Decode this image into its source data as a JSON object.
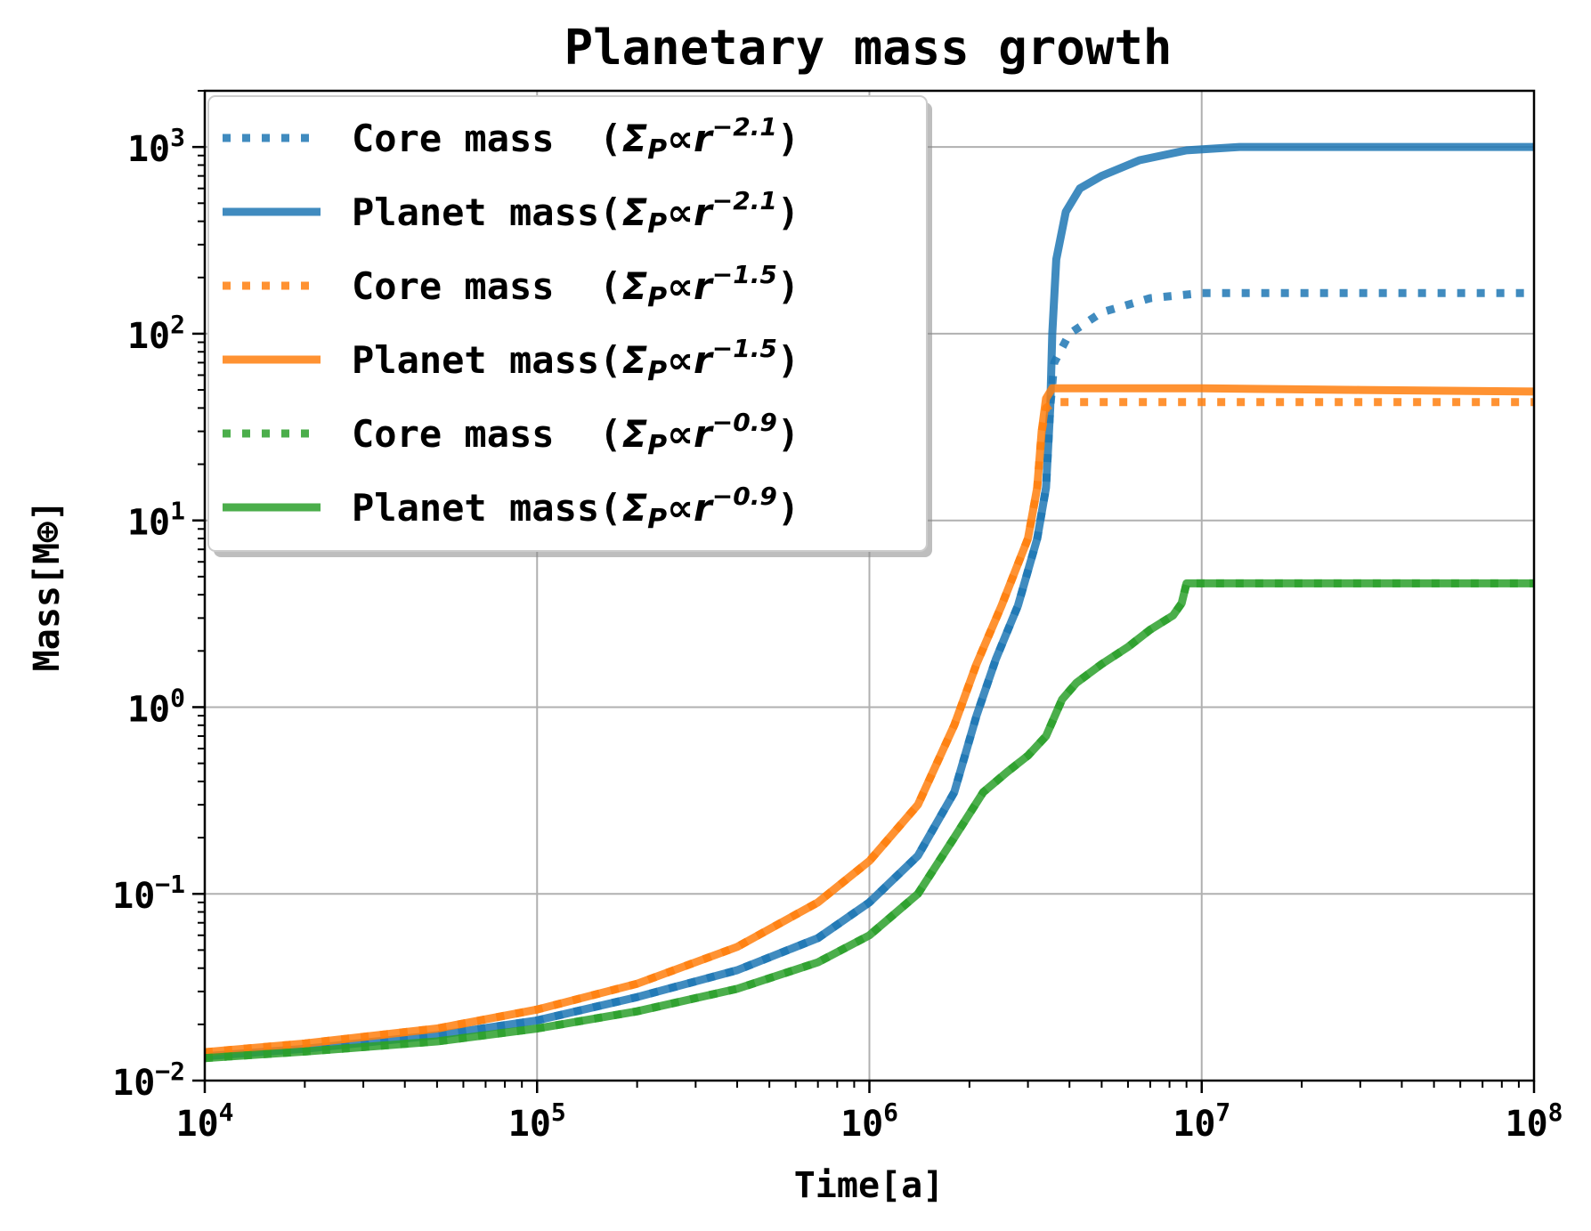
{
  "chart_data": {
    "type": "line",
    "title": "Planetary mass growth",
    "xlabel": "Time[a]",
    "ylabel": "Mass[M⊕]",
    "x_scale": "log",
    "y_scale": "log",
    "xlim": [
      10000,
      100000000
    ],
    "ylim": [
      0.01,
      2000
    ],
    "grid": true,
    "legend_position": "top-left",
    "x_ticks": [
      {
        "value": 10000,
        "base": "10",
        "exp": "4"
      },
      {
        "value": 100000,
        "base": "10",
        "exp": "5"
      },
      {
        "value": 1000000,
        "base": "10",
        "exp": "6"
      },
      {
        "value": 10000000,
        "base": "10",
        "exp": "7"
      },
      {
        "value": 100000000,
        "base": "10",
        "exp": "8"
      }
    ],
    "y_ticks": [
      {
        "value": 0.01,
        "base": "10",
        "exp": "−2"
      },
      {
        "value": 0.1,
        "base": "10",
        "exp": "−1"
      },
      {
        "value": 1,
        "base": "10",
        "exp": "0"
      },
      {
        "value": 10,
        "base": "10",
        "exp": "1"
      },
      {
        "value": 100,
        "base": "10",
        "exp": "2"
      },
      {
        "value": 1000,
        "base": "10",
        "exp": "3"
      }
    ],
    "series": [
      {
        "name": "Core mass (Σp∝r−2.1)",
        "label_text": "Core mass  (",
        "exponent": "−2.1",
        "color": "#1f77b4",
        "style": "dotted",
        "points": [
          [
            10000,
            0.0135
          ],
          [
            20000,
            0.0148
          ],
          [
            50000,
            0.0175
          ],
          [
            100000,
            0.021
          ],
          [
            200000,
            0.028
          ],
          [
            400000,
            0.039
          ],
          [
            700000,
            0.058
          ],
          [
            1000000,
            0.09
          ],
          [
            1400000,
            0.16
          ],
          [
            1800000,
            0.35
          ],
          [
            2100000,
            0.9
          ],
          [
            2400000,
            1.8
          ],
          [
            2800000,
            3.5
          ],
          [
            3200000,
            8
          ],
          [
            3400000,
            15
          ],
          [
            3500000,
            40
          ],
          [
            3600000,
            70
          ],
          [
            4000000,
            100
          ],
          [
            5000000,
            130
          ],
          [
            7000000,
            155
          ],
          [
            10000000,
            165
          ],
          [
            30000000,
            165
          ],
          [
            100000000,
            165
          ]
        ]
      },
      {
        "name": "Planet mass (Σp∝r−2.1)",
        "label_text": "Planet mass(",
        "exponent": "−2.1",
        "color": "#1f77b4",
        "style": "solid",
        "points": [
          [
            10000,
            0.0135
          ],
          [
            20000,
            0.0148
          ],
          [
            50000,
            0.0175
          ],
          [
            100000,
            0.021
          ],
          [
            200000,
            0.028
          ],
          [
            400000,
            0.039
          ],
          [
            700000,
            0.058
          ],
          [
            1000000,
            0.09
          ],
          [
            1400000,
            0.16
          ],
          [
            1800000,
            0.35
          ],
          [
            2100000,
            0.9
          ],
          [
            2400000,
            1.8
          ],
          [
            2800000,
            3.5
          ],
          [
            3200000,
            8
          ],
          [
            3400000,
            15
          ],
          [
            3500000,
            40
          ],
          [
            3550000,
            100
          ],
          [
            3650000,
            250
          ],
          [
            3900000,
            450
          ],
          [
            4300000,
            600
          ],
          [
            5000000,
            700
          ],
          [
            6500000,
            850
          ],
          [
            9000000,
            960
          ],
          [
            13000000,
            1000
          ],
          [
            30000000,
            1000
          ],
          [
            100000000,
            1000
          ]
        ]
      },
      {
        "name": "Core mass (Σp∝r−1.5)",
        "label_text": "Core mass  (",
        "exponent": "−1.5",
        "color": "#ff7f0e",
        "style": "dotted",
        "points": [
          [
            10000,
            0.0142
          ],
          [
            20000,
            0.0158
          ],
          [
            50000,
            0.019
          ],
          [
            100000,
            0.024
          ],
          [
            200000,
            0.033
          ],
          [
            400000,
            0.052
          ],
          [
            700000,
            0.09
          ],
          [
            1000000,
            0.15
          ],
          [
            1400000,
            0.3
          ],
          [
            1800000,
            0.8
          ],
          [
            2100000,
            1.7
          ],
          [
            2500000,
            3.5
          ],
          [
            3000000,
            8
          ],
          [
            3200000,
            15
          ],
          [
            3300000,
            30
          ],
          [
            3400000,
            40
          ],
          [
            3600000,
            43
          ],
          [
            5000000,
            43
          ],
          [
            10000000,
            43
          ],
          [
            100000000,
            43
          ]
        ]
      },
      {
        "name": "Planet mass (Σp∝r−1.5)",
        "label_text": "Planet mass(",
        "exponent": "−1.5",
        "color": "#ff7f0e",
        "style": "solid",
        "points": [
          [
            10000,
            0.0142
          ],
          [
            20000,
            0.0158
          ],
          [
            50000,
            0.019
          ],
          [
            100000,
            0.024
          ],
          [
            200000,
            0.033
          ],
          [
            400000,
            0.052
          ],
          [
            700000,
            0.09
          ],
          [
            1000000,
            0.15
          ],
          [
            1400000,
            0.3
          ],
          [
            1800000,
            0.8
          ],
          [
            2100000,
            1.7
          ],
          [
            2500000,
            3.5
          ],
          [
            3000000,
            8
          ],
          [
            3200000,
            15
          ],
          [
            3300000,
            30
          ],
          [
            3400000,
            45
          ],
          [
            3550000,
            51
          ],
          [
            5000000,
            51
          ],
          [
            10000000,
            51
          ],
          [
            30000000,
            50
          ],
          [
            100000000,
            49
          ]
        ]
      },
      {
        "name": "Core mass (Σp∝r−0.9)",
        "label_text": "Core mass  (",
        "exponent": "−0.9",
        "color": "#2ca02c",
        "style": "dotted",
        "points": [
          [
            10000,
            0.0132
          ],
          [
            20000,
            0.0143
          ],
          [
            50000,
            0.0162
          ],
          [
            100000,
            0.019
          ],
          [
            200000,
            0.0235
          ],
          [
            400000,
            0.031
          ],
          [
            700000,
            0.043
          ],
          [
            1000000,
            0.06
          ],
          [
            1400000,
            0.1
          ],
          [
            1800000,
            0.2
          ],
          [
            2200000,
            0.35
          ],
          [
            2600000,
            0.45
          ],
          [
            3000000,
            0.55
          ],
          [
            3400000,
            0.7
          ],
          [
            3800000,
            1.1
          ],
          [
            4200000,
            1.35
          ],
          [
            5000000,
            1.7
          ],
          [
            6000000,
            2.1
          ],
          [
            7000000,
            2.6
          ],
          [
            8200000,
            3.1
          ],
          [
            8700000,
            3.6
          ],
          [
            9000000,
            4.6
          ],
          [
            10000000,
            4.6
          ],
          [
            100000000,
            4.6
          ]
        ]
      },
      {
        "name": "Planet mass (Σp∝r−0.9)",
        "label_text": "Planet mass(",
        "exponent": "−0.9",
        "color": "#2ca02c",
        "style": "solid",
        "points": [
          [
            10000,
            0.0132
          ],
          [
            20000,
            0.0143
          ],
          [
            50000,
            0.0162
          ],
          [
            100000,
            0.019
          ],
          [
            200000,
            0.0235
          ],
          [
            400000,
            0.031
          ],
          [
            700000,
            0.043
          ],
          [
            1000000,
            0.06
          ],
          [
            1400000,
            0.1
          ],
          [
            1800000,
            0.2
          ],
          [
            2200000,
            0.35
          ],
          [
            2600000,
            0.45
          ],
          [
            3000000,
            0.55
          ],
          [
            3400000,
            0.7
          ],
          [
            3800000,
            1.1
          ],
          [
            4200000,
            1.35
          ],
          [
            5000000,
            1.7
          ],
          [
            6000000,
            2.1
          ],
          [
            7000000,
            2.6
          ],
          [
            8200000,
            3.1
          ],
          [
            8700000,
            3.6
          ],
          [
            9000000,
            4.6
          ],
          [
            10000000,
            4.6
          ],
          [
            100000000,
            4.6
          ]
        ]
      }
    ]
  }
}
